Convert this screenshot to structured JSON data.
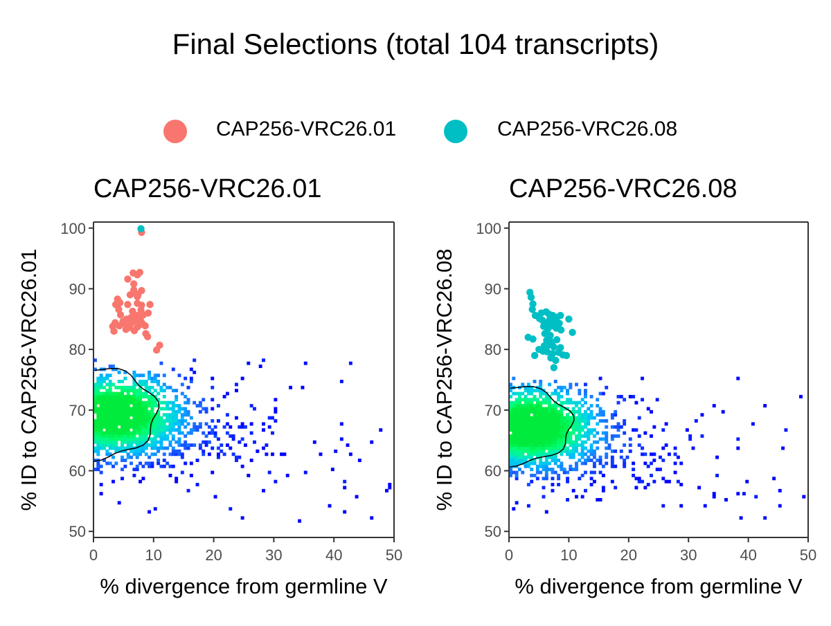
{
  "title": "Final Selections (total 104 transcripts)",
  "legend": {
    "items": [
      {
        "label": "CAP256-VRC26.01",
        "color": "#F8766D"
      },
      {
        "label": "CAP256-VRC26.08",
        "color": "#00BFC4"
      }
    ]
  },
  "chart_data": [
    {
      "type": "scatter",
      "title": "CAP256-VRC26.01",
      "xlabel": "% divergence from germline V",
      "ylabel": "% ID to CAP256-VRC26.01",
      "xlim": [
        0,
        50
      ],
      "ylim": [
        49,
        101
      ],
      "xticks": [
        0,
        10,
        20,
        30,
        40,
        50
      ],
      "yticks": [
        50,
        60,
        70,
        80,
        90,
        100
      ],
      "grid": false,
      "background_density": {
        "description_colors": [
          "#0000FF",
          "#1E90FF",
          "#00BFFF",
          "#00FFB0",
          "#00FF40"
        ],
        "dense_core_x": [
          0,
          11
        ],
        "dense_core_y": [
          62,
          77
        ],
        "sparse_x": [
          0,
          50
        ],
        "sparse_y": [
          52,
          78
        ]
      },
      "series": [
        {
          "name": "CAP256-VRC26.01",
          "color": "#F8766D",
          "points": [
            [
              8.0,
              99.3
            ],
            [
              6.6,
              92.6
            ],
            [
              7.3,
              92.3
            ],
            [
              7.7,
              92.7
            ],
            [
              5.7,
              91.6
            ],
            [
              6.7,
              90.8
            ],
            [
              6.7,
              89.8
            ],
            [
              7.0,
              89.2
            ],
            [
              8.0,
              89.7
            ],
            [
              6.1,
              89.0
            ],
            [
              7.3,
              88.7
            ],
            [
              4.0,
              88.3
            ],
            [
              4.4,
              87.7
            ],
            [
              3.7,
              87.4
            ],
            [
              5.7,
              87.4
            ],
            [
              7.3,
              87.6
            ],
            [
              8.0,
              87.3
            ],
            [
              9.4,
              87.4
            ],
            [
              4.2,
              86.6
            ],
            [
              6.5,
              86.3
            ],
            [
              7.9,
              86.5
            ],
            [
              4.5,
              85.7
            ],
            [
              6.3,
              85.3
            ],
            [
              7.2,
              85.6
            ],
            [
              8.3,
              85.7
            ],
            [
              5.5,
              85.0
            ],
            [
              6.9,
              84.7
            ],
            [
              7.8,
              84.9
            ],
            [
              3.6,
              84.4
            ],
            [
              4.9,
              84.6
            ],
            [
              6.2,
              84.2
            ],
            [
              8.1,
              84.3
            ],
            [
              3.2,
              83.8
            ],
            [
              4.3,
              83.9
            ],
            [
              5.6,
              83.8
            ],
            [
              7.3,
              83.7
            ],
            [
              8.6,
              83.9
            ],
            [
              3.4,
              83.0
            ],
            [
              5.4,
              83.3
            ],
            [
              6.8,
              83.1
            ],
            [
              8.7,
              82.6
            ],
            [
              9.0,
              82.1
            ],
            [
              9.1,
              86.0
            ],
            [
              7.6,
              84.0
            ],
            [
              6.0,
              83.6
            ],
            [
              10.5,
              79.9
            ],
            [
              11.0,
              80.7
            ],
            [
              7.4,
              89.0
            ],
            [
              5.2,
              84.2
            ]
          ]
        },
        {
          "name": "CAP256-VRC26.08",
          "color": "#00BFC4",
          "points": [
            [
              7.9,
              99.9
            ]
          ]
        }
      ]
    },
    {
      "type": "scatter",
      "title": "CAP256-VRC26.08",
      "xlabel": "% divergence from germline V",
      "ylabel": "% ID to CAP256-VRC26.08",
      "xlim": [
        0,
        50
      ],
      "ylim": [
        49,
        101
      ],
      "xticks": [
        0,
        10,
        20,
        30,
        40,
        50
      ],
      "yticks": [
        50,
        60,
        70,
        80,
        90,
        100
      ],
      "grid": false,
      "background_density": {
        "description_colors": [
          "#0000FF",
          "#1E90FF",
          "#00BFFF",
          "#00FFB0",
          "#00FF40"
        ],
        "dense_core_x": [
          0,
          11
        ],
        "dense_core_y": [
          61,
          74
        ],
        "sparse_x": [
          0,
          50
        ],
        "sparse_y": [
          51,
          75
        ]
      },
      "series": [
        {
          "name": "CAP256-VRC26.08",
          "color": "#00BFC4",
          "points": [
            [
              3.5,
              89.4
            ],
            [
              3.7,
              88.6
            ],
            [
              4.0,
              87.5
            ],
            [
              3.9,
              86.6
            ],
            [
              4.4,
              85.6
            ],
            [
              5.4,
              86.0
            ],
            [
              6.2,
              86.2
            ],
            [
              6.7,
              85.8
            ],
            [
              7.3,
              85.6
            ],
            [
              8.0,
              85.3
            ],
            [
              8.6,
              85.6
            ],
            [
              10.0,
              85.0
            ],
            [
              5.1,
              85.1
            ],
            [
              5.6,
              84.8
            ],
            [
              6.1,
              84.4
            ],
            [
              6.8,
              84.9
            ],
            [
              7.6,
              84.6
            ],
            [
              8.4,
              84.3
            ],
            [
              5.8,
              83.8
            ],
            [
              6.5,
              83.4
            ],
            [
              7.1,
              83.9
            ],
            [
              7.9,
              83.5
            ],
            [
              8.7,
              83.2
            ],
            [
              10.6,
              82.8
            ],
            [
              6.0,
              82.6
            ],
            [
              6.9,
              82.3
            ],
            [
              3.2,
              82.0
            ],
            [
              4.0,
              81.7
            ],
            [
              6.3,
              81.5
            ],
            [
              7.2,
              81.2
            ],
            [
              8.0,
              81.6
            ],
            [
              6.6,
              80.7
            ],
            [
              7.5,
              80.4
            ],
            [
              8.6,
              80.3
            ],
            [
              5.0,
              80.0
            ],
            [
              5.7,
              79.7
            ],
            [
              6.4,
              79.6
            ],
            [
              7.3,
              79.3
            ],
            [
              8.3,
              79.5
            ],
            [
              9.0,
              79.1
            ],
            [
              9.6,
              79.0
            ],
            [
              7.0,
              78.6
            ],
            [
              7.8,
              78.2
            ],
            [
              4.3,
              79.0
            ],
            [
              7.5,
              77.0
            ],
            [
              5.9,
              80.6
            ]
          ]
        }
      ]
    }
  ]
}
